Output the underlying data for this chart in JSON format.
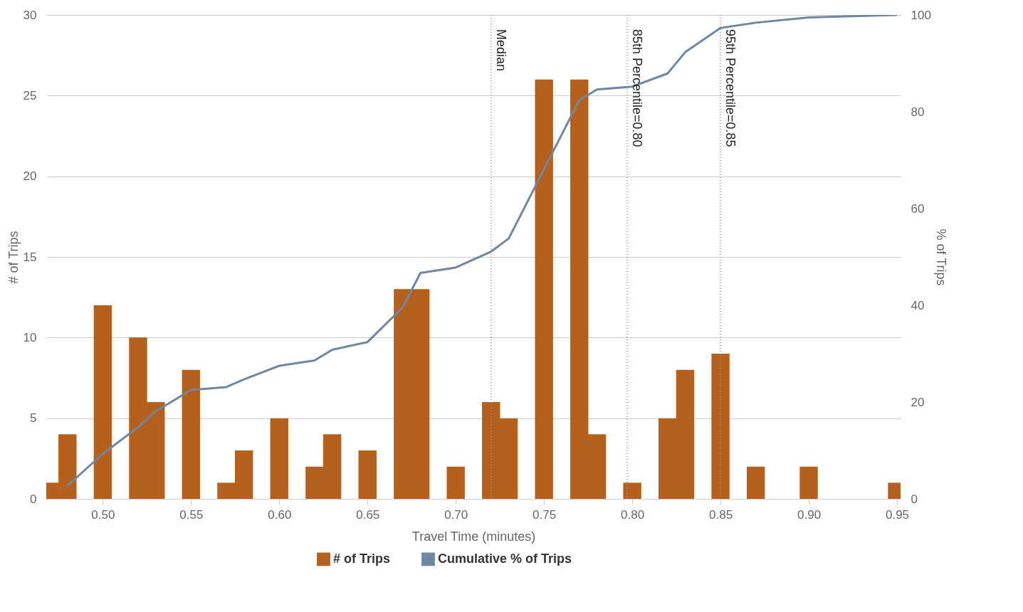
{
  "chart_data": {
    "type": "bar",
    "xlabel": "Travel Time (minutes)",
    "ylabel": "# of Trips",
    "y2label": "% of Trips",
    "x": [
      0.47,
      0.48,
      0.5,
      0.52,
      0.53,
      0.55,
      0.57,
      0.58,
      0.6,
      0.62,
      0.63,
      0.65,
      0.67,
      0.68,
      0.7,
      0.72,
      0.73,
      0.75,
      0.77,
      0.78,
      0.8,
      0.82,
      0.83,
      0.85,
      0.87,
      0.9,
      0.95
    ],
    "series": [
      {
        "name": "# of Trips",
        "color": "#b5601c",
        "values": [
          1,
          4,
          12,
          10,
          6,
          8,
          1,
          3,
          5,
          2,
          4,
          3,
          13,
          13,
          2,
          6,
          5,
          26,
          26,
          4,
          1,
          5,
          8,
          9,
          2,
          2,
          1
        ]
      },
      {
        "name": "Cumulative % of Trips",
        "type": "line",
        "axis": "y2",
        "color": "#6f87a3",
        "x": [
          0.48,
          0.5,
          0.52,
          0.53,
          0.55,
          0.57,
          0.58,
          0.6,
          0.62,
          0.63,
          0.65,
          0.67,
          0.68,
          0.7,
          0.72,
          0.73,
          0.75,
          0.77,
          0.78,
          0.8,
          0.82,
          0.83,
          0.85,
          0.87,
          0.9,
          0.95
        ],
        "values": [
          2.7,
          9.3,
          14.8,
          18.1,
          22.5,
          23.1,
          24.7,
          27.5,
          28.6,
          30.8,
          32.4,
          39.6,
          46.7,
          47.8,
          51.1,
          53.8,
          68.1,
          82.4,
          84.6,
          85.2,
          87.9,
          92.3,
          97.3,
          98.4,
          99.5,
          100
        ]
      }
    ],
    "xlim": [
      0.47,
      0.95
    ],
    "xticks": [
      {
        "value": 0.5,
        "label": "0.50"
      },
      0.55,
      {
        "value": 0.6,
        "label": "0.60"
      },
      0.65,
      {
        "value": 0.7,
        "label": "0.70"
      },
      0.75,
      {
        "value": 0.8,
        "label": "0.80"
      },
      0.85,
      {
        "value": 0.9,
        "label": "0.90"
      },
      0.95
    ],
    "ylim": [
      0,
      30
    ],
    "yticks": [
      0,
      5,
      10,
      15,
      20,
      25,
      30
    ],
    "y2lim": [
      0,
      100
    ],
    "y2ticks": [
      0,
      20,
      40,
      60,
      80,
      100
    ],
    "grid": "y",
    "legend": "bottom",
    "ref_lines": [
      {
        "axis": "x",
        "value": 0.72,
        "label": "Median",
        "line_style": "dotted",
        "color": "#999999"
      },
      {
        "axis": "x",
        "value": 0.797,
        "label": "85th Percentile=0.80",
        "line_style": "dotted",
        "color": "#999999"
      },
      {
        "axis": "x",
        "value": 0.85,
        "label": "95th Percentile=0.85",
        "line_style": "dotted",
        "color": "#999999"
      }
    ]
  }
}
